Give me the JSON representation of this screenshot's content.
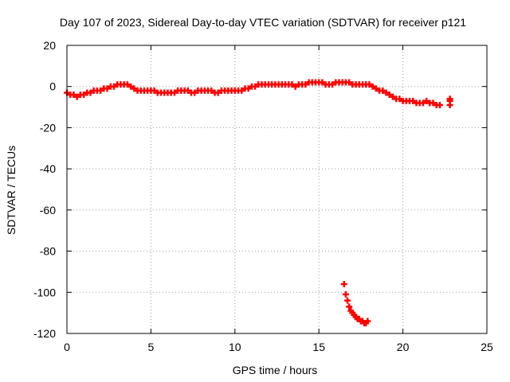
{
  "chart_data": {
    "type": "scatter",
    "title": "Day 107 of 2023, Sidereal Day-to-day VTEC variation (SDTVAR) for receiver p121",
    "xlabel": "GPS time / hours",
    "ylabel": "SDTVAR / TECUs",
    "xlim": [
      0,
      25
    ],
    "ylim": [
      -120,
      20
    ],
    "xticks": [
      0,
      5,
      10,
      15,
      20,
      25
    ],
    "yticks": [
      -120,
      -100,
      -80,
      -60,
      -40,
      -20,
      0,
      20
    ],
    "grid": true,
    "marker": "+",
    "series": [
      {
        "name": "SDTVAR",
        "color": "#ff0000",
        "x": [
          0.0,
          0.2,
          0.4,
          0.6,
          0.8,
          1.0,
          1.2,
          1.4,
          1.6,
          1.8,
          2.0,
          2.2,
          2.4,
          2.6,
          2.8,
          3.0,
          3.2,
          3.4,
          3.6,
          3.8,
          4.0,
          4.2,
          4.4,
          4.6,
          4.8,
          5.0,
          5.2,
          5.4,
          5.6,
          5.8,
          6.0,
          6.2,
          6.4,
          6.6,
          6.8,
          7.0,
          7.2,
          7.4,
          7.6,
          7.8,
          8.0,
          8.2,
          8.4,
          8.6,
          8.8,
          9.0,
          9.2,
          9.4,
          9.6,
          9.8,
          10.0,
          10.2,
          10.4,
          10.6,
          10.8,
          11.0,
          11.2,
          11.4,
          11.6,
          11.8,
          12.0,
          12.2,
          12.4,
          12.6,
          12.8,
          13.0,
          13.2,
          13.4,
          13.6,
          13.8,
          14.0,
          14.2,
          14.4,
          14.6,
          14.8,
          15.0,
          15.2,
          15.4,
          15.6,
          15.8,
          16.0,
          16.2,
          16.4,
          16.6,
          16.8,
          17.0,
          17.2,
          17.4,
          17.6,
          17.8,
          18.0,
          18.2,
          18.4,
          18.6,
          18.8,
          19.0,
          19.2,
          19.4,
          19.6,
          19.8,
          20.0,
          20.2,
          20.4,
          20.6,
          20.8,
          21.0,
          21.2,
          21.4,
          21.6,
          21.8,
          22.0,
          22.2,
          22.8,
          22.8,
          22.8,
          16.5,
          16.6,
          16.7,
          16.8,
          16.9,
          17.0,
          17.1,
          17.2,
          17.3,
          17.4,
          17.5,
          17.6,
          17.7,
          17.8,
          17.9
        ],
        "y": [
          -3,
          -4,
          -4,
          -5,
          -4,
          -4,
          -3,
          -3,
          -2,
          -2,
          -2,
          -1,
          -1,
          0,
          0,
          1,
          1,
          1,
          1,
          0,
          -1,
          -2,
          -2,
          -2,
          -2,
          -2,
          -2,
          -3,
          -3,
          -3,
          -3,
          -3,
          -3,
          -2,
          -2,
          -2,
          -2,
          -3,
          -3,
          -2,
          -2,
          -2,
          -2,
          -2,
          -3,
          -3,
          -2,
          -2,
          -2,
          -2,
          -2,
          -2,
          -2,
          -1,
          -1,
          0,
          0,
          1,
          1,
          1,
          1,
          1,
          1,
          1,
          1,
          1,
          1,
          1,
          0,
          1,
          1,
          1,
          2,
          2,
          2,
          2,
          2,
          1,
          1,
          1,
          2,
          2,
          2,
          2,
          2,
          1,
          1,
          1,
          1,
          1,
          1,
          0,
          -1,
          -2,
          -2,
          -3,
          -4,
          -5,
          -6,
          -6,
          -7,
          -7,
          -7,
          -7,
          -8,
          -8,
          -8,
          -7,
          -8,
          -8,
          -9,
          -9,
          -6,
          -7,
          -9,
          -96,
          -101,
          -104,
          -107,
          -109,
          -110,
          -111,
          -112,
          -113,
          -113,
          -114,
          -114,
          -115,
          -115,
          -114
        ]
      }
    ]
  }
}
